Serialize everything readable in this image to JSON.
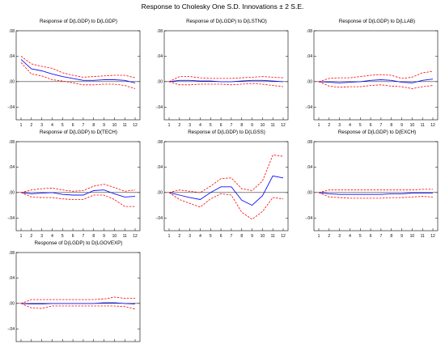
{
  "title": "Response to Cholesky One S.D. Innovations ± 2 S.E.",
  "colors": {
    "response": "#1010ff",
    "band": "#ff0000",
    "zero": "#000000"
  },
  "chart_data": [
    {
      "type": "line",
      "title": "Response of D(LGDP) to D(LGDP)",
      "x": [
        1,
        2,
        3,
        4,
        5,
        6,
        7,
        8,
        9,
        10,
        11,
        12
      ],
      "y_ticks": [
        ".08",
        ".04",
        ".00",
        "-.04"
      ],
      "x_ticks": [
        "1",
        "2",
        "3",
        "4",
        "5",
        "6",
        "7",
        "8",
        "9",
        "10",
        "11",
        "12"
      ],
      "ylim": [
        -0.06,
        0.08
      ],
      "legend": "none",
      "series": [
        {
          "role": "response",
          "values": [
            0.035,
            0.02,
            0.017,
            0.012,
            0.008,
            0.005,
            0.002,
            0.002,
            0.003,
            0.003,
            0.002,
            -0.002
          ]
        },
        {
          "role": "upper",
          "values": [
            0.04,
            0.028,
            0.024,
            0.021,
            0.014,
            0.01,
            0.007,
            0.008,
            0.009,
            0.01,
            0.01,
            0.006
          ]
        },
        {
          "role": "lower",
          "values": [
            0.03,
            0.012,
            0.009,
            0.003,
            0.001,
            -0.002,
            -0.005,
            -0.005,
            -0.004,
            -0.004,
            -0.006,
            -0.011
          ]
        }
      ]
    },
    {
      "type": "line",
      "title": "Response of D(LGDP) to D(LSTNO)",
      "x": [
        1,
        2,
        3,
        4,
        5,
        6,
        7,
        8,
        9,
        10,
        11,
        12
      ],
      "y_ticks": [
        ".08",
        ".04",
        ".00",
        "-.04"
      ],
      "x_ticks": [
        "1",
        "2",
        "3",
        "4",
        "5",
        "6",
        "7",
        "8",
        "9",
        "10",
        "11",
        "12"
      ],
      "ylim": [
        -0.06,
        0.08
      ],
      "legend": "none",
      "series": [
        {
          "role": "response",
          "values": [
            0,
            0.002,
            0.002,
            0.001,
            0.001,
            0.0,
            0.0,
            0.001,
            0.002,
            0.002,
            0.001,
            0.0
          ]
        },
        {
          "role": "upper",
          "values": [
            0,
            0.008,
            0.008,
            0.006,
            0.005,
            0.005,
            0.005,
            0.006,
            0.007,
            0.008,
            0.007,
            0.006
          ]
        },
        {
          "role": "lower",
          "values": [
            0,
            -0.005,
            -0.005,
            -0.004,
            -0.004,
            -0.004,
            -0.005,
            -0.004,
            -0.003,
            -0.004,
            -0.006,
            -0.008
          ]
        }
      ]
    },
    {
      "type": "line",
      "title": "Response of D(LGDP) to D(LLAB)",
      "x": [
        1,
        2,
        3,
        4,
        5,
        6,
        7,
        8,
        9,
        10,
        11,
        12
      ],
      "y_ticks": [
        ".08",
        ".04",
        ".00",
        "-.04"
      ],
      "x_ticks": [
        "1",
        "2",
        "3",
        "4",
        "5",
        "6",
        "7",
        "8",
        "9",
        "10",
        "11",
        "12"
      ],
      "ylim": [
        -0.06,
        0.08
      ],
      "legend": "none",
      "series": [
        {
          "role": "response",
          "values": [
            0,
            -0.001,
            -0.002,
            -0.001,
            0.0,
            0.002,
            0.003,
            0.002,
            -0.001,
            -0.002,
            0.002,
            0.004
          ]
        },
        {
          "role": "upper",
          "values": [
            0,
            0.005,
            0.006,
            0.006,
            0.008,
            0.01,
            0.011,
            0.01,
            0.005,
            0.007,
            0.014,
            0.016
          ]
        },
        {
          "role": "lower",
          "values": [
            0,
            -0.007,
            -0.009,
            -0.008,
            -0.008,
            -0.006,
            -0.005,
            -0.007,
            -0.008,
            -0.011,
            -0.008,
            -0.006
          ]
        }
      ]
    },
    {
      "type": "line",
      "title": "Response of D(LGDP) to D(TECH)",
      "x": [
        1,
        2,
        3,
        4,
        5,
        6,
        7,
        8,
        9,
        10,
        11,
        12
      ],
      "y_ticks": [
        ".08",
        ".04",
        ".00",
        "-.04"
      ],
      "x_ticks": [
        "1",
        "2",
        "3",
        "4",
        "5",
        "6",
        "7",
        "8",
        "9",
        "10",
        "11",
        "12"
      ],
      "ylim": [
        -0.06,
        0.08
      ],
      "legend": "none",
      "series": [
        {
          "role": "response",
          "values": [
            0,
            -0.002,
            -0.001,
            0.0,
            -0.003,
            -0.004,
            -0.004,
            0.003,
            0.004,
            -0.002,
            -0.007,
            -0.006
          ]
        },
        {
          "role": "upper",
          "values": [
            0,
            0.004,
            0.006,
            0.007,
            0.004,
            0.002,
            0.003,
            0.01,
            0.013,
            0.008,
            0.002,
            0.004
          ]
        },
        {
          "role": "lower",
          "values": [
            0,
            -0.007,
            -0.008,
            -0.008,
            -0.01,
            -0.011,
            -0.011,
            -0.004,
            -0.004,
            -0.011,
            -0.022,
            -0.022
          ]
        }
      ]
    },
    {
      "type": "line",
      "title": "Response of D(LGDP) to D(LGSS)",
      "x": [
        1,
        2,
        3,
        4,
        5,
        6,
        7,
        8,
        9,
        10,
        11,
        12
      ],
      "y_ticks": [
        ".08",
        ".04",
        ".00",
        "-.04"
      ],
      "x_ticks": [
        "1",
        "2",
        "3",
        "4",
        "5",
        "6",
        "7",
        "8",
        "9",
        "10",
        "11",
        "12"
      ],
      "ylim": [
        -0.06,
        0.08
      ],
      "legend": "none",
      "series": [
        {
          "role": "response",
          "values": [
            0,
            -0.004,
            -0.008,
            -0.011,
            0.0,
            0.009,
            0.009,
            -0.012,
            -0.02,
            -0.005,
            0.026,
            0.023
          ]
        },
        {
          "role": "upper",
          "values": [
            0,
            0.004,
            0.002,
            0.0,
            0.01,
            0.022,
            0.023,
            0.006,
            0.003,
            0.018,
            0.059,
            0.057
          ]
        },
        {
          "role": "lower",
          "values": [
            0,
            -0.011,
            -0.017,
            -0.023,
            -0.01,
            -0.002,
            -0.004,
            -0.031,
            -0.042,
            -0.03,
            -0.008,
            -0.01
          ]
        }
      ]
    },
    {
      "type": "line",
      "title": "Response of D(LGDP) to D(EXCH)",
      "x": [
        1,
        2,
        3,
        4,
        5,
        6,
        7,
        8,
        9,
        10,
        11,
        12
      ],
      "y_ticks": [
        ".08",
        ".04",
        ".00",
        "-.04"
      ],
      "x_ticks": [
        "1",
        "2",
        "3",
        "4",
        "5",
        "6",
        "7",
        "8",
        "9",
        "10",
        "11",
        "12"
      ],
      "ylim": [
        -0.06,
        0.08
      ],
      "legend": "none",
      "series": [
        {
          "role": "response",
          "values": [
            0,
            -0.002,
            -0.003,
            -0.003,
            -0.003,
            -0.003,
            -0.003,
            -0.002,
            -0.002,
            -0.001,
            -0.001,
            -0.001
          ]
        },
        {
          "role": "upper",
          "values": [
            0,
            0.004,
            0.004,
            0.004,
            0.004,
            0.004,
            0.004,
            0.004,
            0.004,
            0.004,
            0.005,
            0.005
          ]
        },
        {
          "role": "lower",
          "values": [
            0,
            -0.007,
            -0.008,
            -0.009,
            -0.009,
            -0.009,
            -0.009,
            -0.008,
            -0.008,
            -0.007,
            -0.006,
            -0.007
          ]
        }
      ]
    },
    {
      "type": "line",
      "title": "Response of D(LGDP) to D(LGOVEXP)",
      "x": [
        1,
        2,
        3,
        4,
        5,
        6,
        7,
        8,
        9,
        10,
        11,
        12
      ],
      "y_ticks": [
        ".08",
        ".04",
        ".00",
        "-.04"
      ],
      "x_ticks": [
        "1",
        "2",
        "3",
        "4",
        "5",
        "6",
        "7",
        "8",
        "9",
        "10",
        "11",
        "12"
      ],
      "ylim": [
        -0.06,
        0.08
      ],
      "legend": "none",
      "series": [
        {
          "role": "response",
          "values": [
            0,
            -0.001,
            -0.001,
            0.0,
            0.0,
            0.0,
            0.0,
            0.0,
            0.001,
            0.001,
            0.0,
            -0.001
          ]
        },
        {
          "role": "upper",
          "values": [
            0,
            0.006,
            0.006,
            0.006,
            0.006,
            0.006,
            0.006,
            0.006,
            0.007,
            0.01,
            0.008,
            0.008
          ]
        },
        {
          "role": "lower",
          "values": [
            0,
            -0.007,
            -0.008,
            -0.004,
            -0.004,
            -0.004,
            -0.004,
            -0.004,
            -0.004,
            -0.004,
            -0.005,
            -0.009
          ]
        }
      ]
    }
  ]
}
